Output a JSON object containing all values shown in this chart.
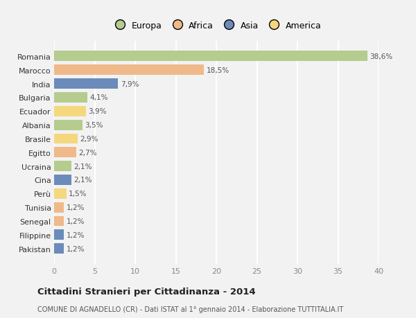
{
  "countries": [
    "Romania",
    "Marocco",
    "India",
    "Bulgaria",
    "Ecuador",
    "Albania",
    "Brasile",
    "Egitto",
    "Ucraina",
    "Cina",
    "Perù",
    "Tunisia",
    "Senegal",
    "Filippine",
    "Pakistan"
  ],
  "values": [
    38.6,
    18.5,
    7.9,
    4.1,
    3.9,
    3.5,
    2.9,
    2.7,
    2.1,
    2.1,
    1.5,
    1.2,
    1.2,
    1.2,
    1.2
  ],
  "labels": [
    "38,6%",
    "18,5%",
    "7,9%",
    "4,1%",
    "3,9%",
    "3,5%",
    "2,9%",
    "2,7%",
    "2,1%",
    "2,1%",
    "1,5%",
    "1,2%",
    "1,2%",
    "1,2%",
    "1,2%"
  ],
  "colors": [
    "#b5cc8e",
    "#f0b989",
    "#6b8cba",
    "#b5cc8e",
    "#f5d77e",
    "#b5cc8e",
    "#f5d77e",
    "#f0b989",
    "#b5cc8e",
    "#6b8cba",
    "#f5d77e",
    "#f0b989",
    "#f0b989",
    "#6b8cba",
    "#6b8cba"
  ],
  "legend_labels": [
    "Europa",
    "Africa",
    "Asia",
    "America"
  ],
  "legend_colors": [
    "#b5cc8e",
    "#f0b989",
    "#6b8cba",
    "#f5d77e"
  ],
  "xlim": [
    0,
    40
  ],
  "xticks": [
    0,
    5,
    10,
    15,
    20,
    25,
    30,
    35,
    40
  ],
  "title": "Cittadini Stranieri per Cittadinanza - 2014",
  "subtitle": "COMUNE DI AGNADELLO (CR) - Dati ISTAT al 1° gennaio 2014 - Elaborazione TUTTITALIA.IT",
  "background_color": "#f2f2f2",
  "grid_color": "#ffffff",
  "bar_height": 0.75
}
